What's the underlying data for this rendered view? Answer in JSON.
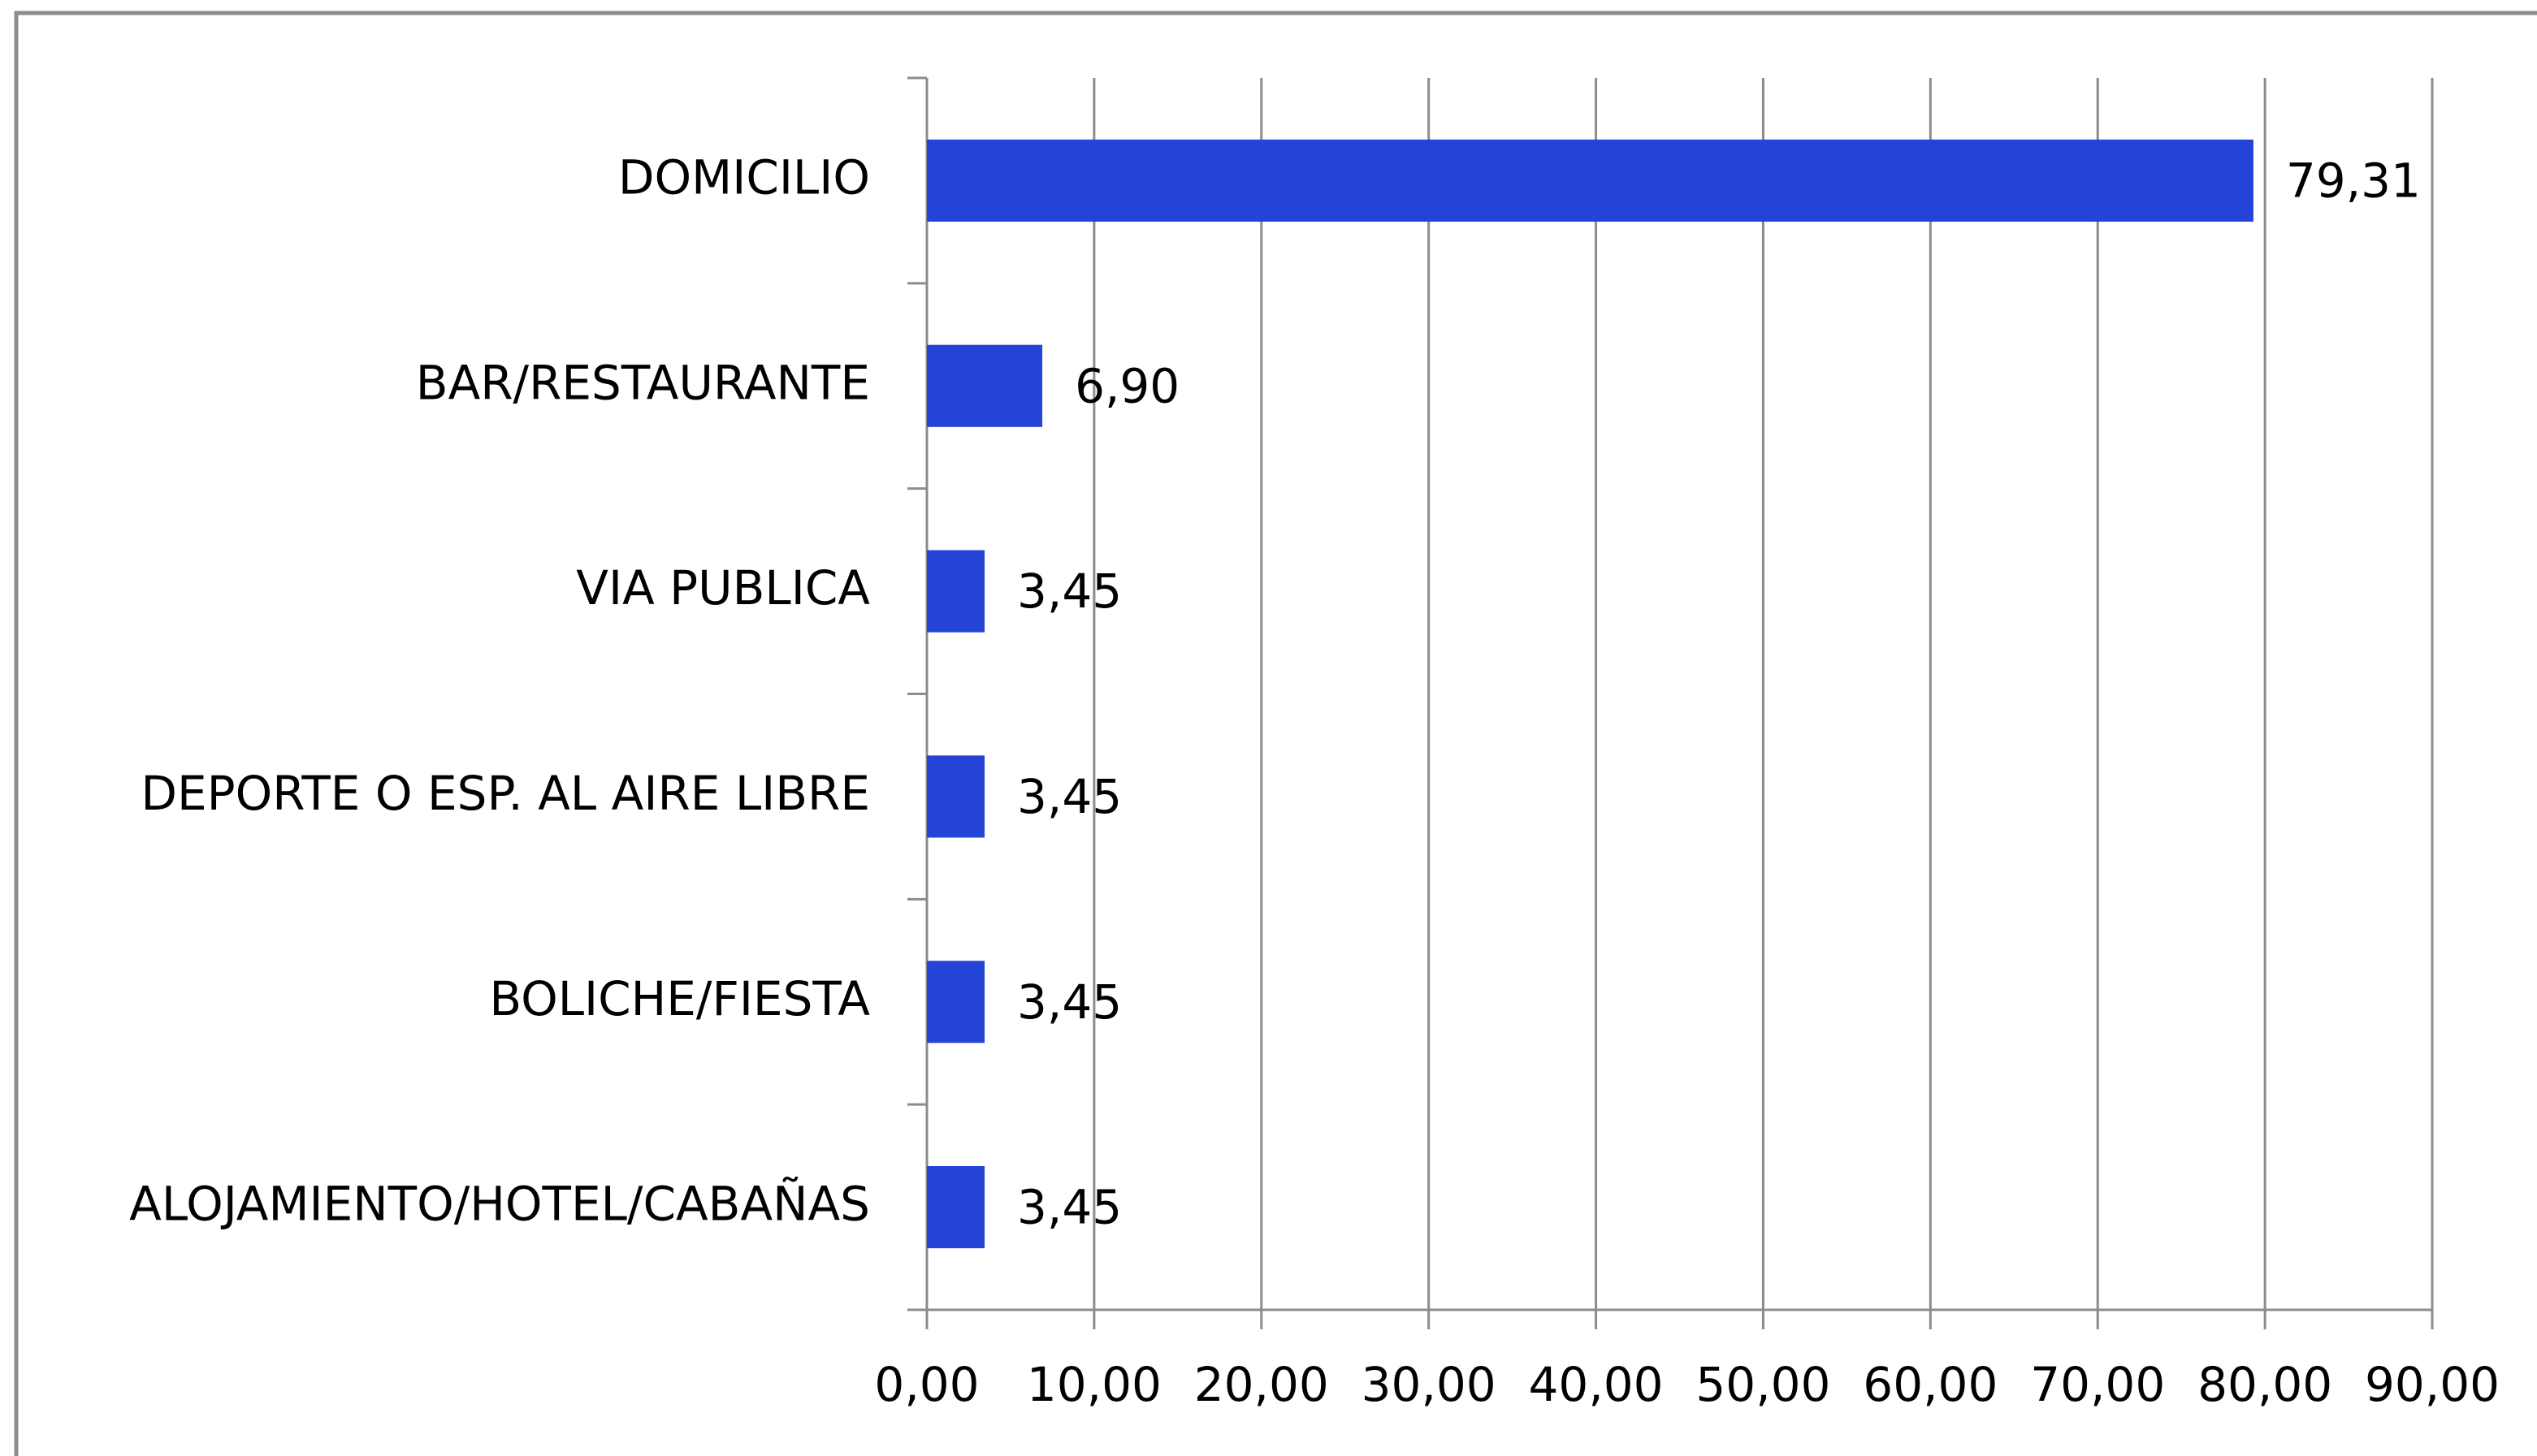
{
  "chart_data": {
    "type": "bar",
    "orientation": "horizontal",
    "categories": [
      "DOMICILIO",
      "BAR/RESTAURANTE",
      "VIA PUBLICA",
      "DEPORTE O ESP. AL AIRE LIBRE",
      "BOLICHE/FIESTA",
      "ALOJAMIENTO/HOTEL/CABAÑAS"
    ],
    "values": [
      79.31,
      6.9,
      3.45,
      3.45,
      3.45,
      3.45
    ],
    "value_labels": [
      "79,31",
      "6,90",
      "3,45",
      "3,45",
      "3,45",
      "3,45"
    ],
    "color": "#2444d8",
    "xlim": [
      0,
      90
    ],
    "xticks": [
      {
        "value": 0,
        "label": "0,00"
      },
      {
        "value": 10,
        "label": "10,00"
      },
      {
        "value": 20,
        "label": "20,00"
      },
      {
        "value": 30,
        "label": "30,00"
      },
      {
        "value": 40,
        "label": "40,00"
      },
      {
        "value": 50,
        "label": "50,00"
      },
      {
        "value": 60,
        "label": "60,00"
      },
      {
        "value": 70,
        "label": "70,00"
      },
      {
        "value": 80,
        "label": "80,00"
      },
      {
        "value": 90,
        "label": "90,00"
      }
    ],
    "grid": true
  }
}
